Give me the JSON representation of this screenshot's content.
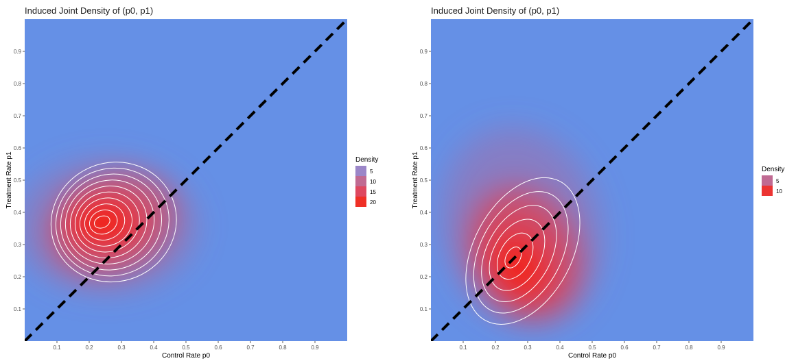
{
  "colors": {
    "panel_background": "#6590e6",
    "density_high": "#f0281e",
    "density_mid": "#b86090",
    "contour_line": "#ffffff",
    "diagonal_line": "#000000"
  },
  "chart_data": [
    {
      "type": "heatmap",
      "title": "Induced Joint Density of (p0, p1)",
      "xlabel": "Control Rate p0",
      "ylabel": "Treatment Rate p1",
      "xlim": [
        0,
        1
      ],
      "ylim": [
        0,
        1
      ],
      "x_ticks": [
        "0.1",
        "0.2",
        "0.3",
        "0.4",
        "0.5",
        "0.6",
        "0.7",
        "0.8",
        "0.9"
      ],
      "y_ticks": [
        "0.1",
        "0.2",
        "0.3",
        "0.4",
        "0.5",
        "0.6",
        "0.7",
        "0.8",
        "0.9"
      ],
      "grid": false,
      "legend": {
        "title": "Density",
        "position": "right",
        "entries": [
          "5",
          "10",
          "15",
          "20"
        ],
        "entry_colors": [
          "#9b86c8",
          "#c06a92",
          "#de4860",
          "#ef3026"
        ]
      },
      "density_peak": {
        "p0": 0.24,
        "p1": 0.365,
        "value": 22
      },
      "contour_levels": [
        2,
        4,
        6,
        8,
        10,
        12,
        14,
        16,
        18,
        20
      ],
      "reference_line": {
        "style": "dashed",
        "from": [
          0,
          0
        ],
        "to": [
          1,
          1
        ]
      }
    },
    {
      "type": "heatmap",
      "title": "Induced Joint Density of (p0, p1)",
      "xlabel": "Control Rate p0",
      "ylabel": "Treatment Rate p1",
      "xlim": [
        0,
        1
      ],
      "ylim": [
        0,
        1
      ],
      "x_ticks": [
        "0.1",
        "0.2",
        "0.3",
        "0.4",
        "0.5",
        "0.6",
        "0.7",
        "0.8",
        "0.9"
      ],
      "y_ticks": [
        "0.1",
        "0.2",
        "0.3",
        "0.4",
        "0.5",
        "0.6",
        "0.7",
        "0.8",
        "0.9"
      ],
      "grid": false,
      "legend": {
        "title": "Density",
        "position": "right",
        "entries": [
          "5",
          "10"
        ],
        "entry_colors": [
          "#c06a92",
          "#ec3432"
        ]
      },
      "density_peak": {
        "p0": 0.265,
        "p1": 0.235,
        "value": 13
      },
      "contour_levels": [
        1,
        3,
        5,
        7,
        9,
        11
      ],
      "reference_line": {
        "style": "dashed",
        "from": [
          0,
          0
        ],
        "to": [
          1,
          1
        ]
      }
    }
  ]
}
